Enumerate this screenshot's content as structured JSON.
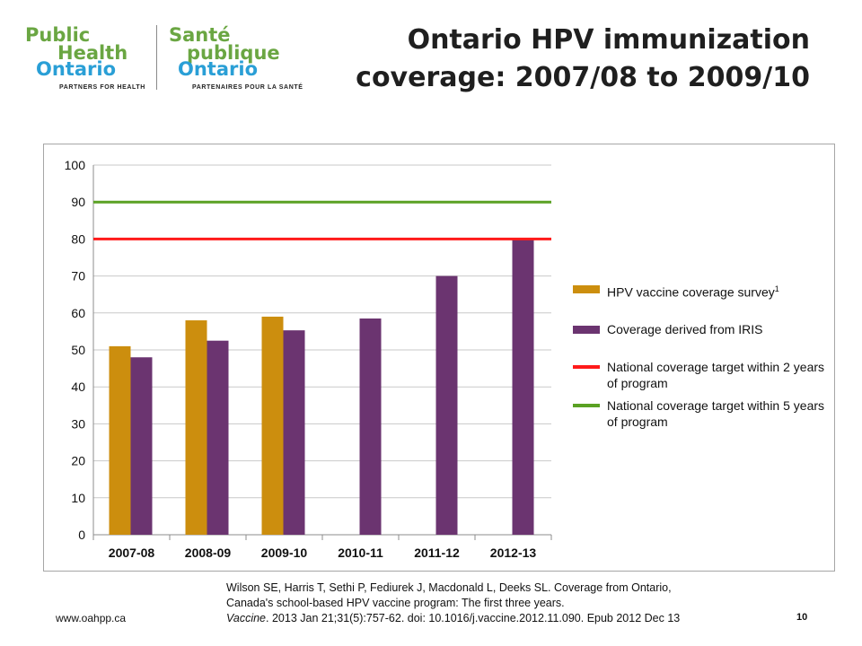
{
  "logo": {
    "en_line1": "Public",
    "en_line2": "Health",
    "en_line3": "Ontario",
    "en_tagline": "PARTNERS FOR HEALTH",
    "fr_line1": "Santé",
    "fr_line2": "publique",
    "fr_line3": "Ontario",
    "fr_tagline": "PARTENAIRES POUR LA SANTÉ"
  },
  "title_line1": "Ontario HPV immunization",
  "title_line2": "coverage: 2007/08 to 2009/10",
  "colors": {
    "survey": "#cc8e0e",
    "iris": "#6b3470",
    "national_2yr": "#ff1a1a",
    "national_5yr": "#5aa123",
    "grid": "#c9c9c9",
    "axis": "#8c8c8c"
  },
  "chart_data": {
    "type": "bar",
    "categories": [
      "2007-08",
      "2008-09",
      "2009-10",
      "2010-11",
      "2011-12",
      "2012-13"
    ],
    "ylim": [
      0,
      100
    ],
    "yticks": [
      0,
      10,
      20,
      30,
      40,
      50,
      60,
      70,
      80,
      90,
      100
    ],
    "grid": true,
    "legend_position": "right",
    "series": [
      {
        "name": "HPV vaccine coverage survey",
        "superscript": "1",
        "kind": "bar",
        "values": [
          51,
          58,
          59,
          null,
          null,
          null
        ]
      },
      {
        "name": "Coverage derived from IRIS",
        "kind": "bar",
        "values": [
          48,
          52.5,
          55.3,
          58.5,
          70,
          80
        ]
      },
      {
        "name": "National coverage target within 2 years of program",
        "kind": "line",
        "value": 80
      },
      {
        "name": "National coverage target within 5 years of program",
        "kind": "line",
        "value": 90
      }
    ]
  },
  "citation": {
    "line1": "Wilson SE, Harris T, Sethi P, Fediurek J, Macdonald L, Deeks SL.  Coverage from Ontario,",
    "line2": "Canada's school-based HPV vaccine program: The first three years.",
    "journal": "Vaccine",
    "line3_rest": ". 2013 Jan 21;31(5):757-62. doi: 10.1016/j.vaccine.2012.11.090.  Epub 2012 Dec 13"
  },
  "footer": {
    "url": "www.oahpp.ca",
    "page": "10"
  }
}
